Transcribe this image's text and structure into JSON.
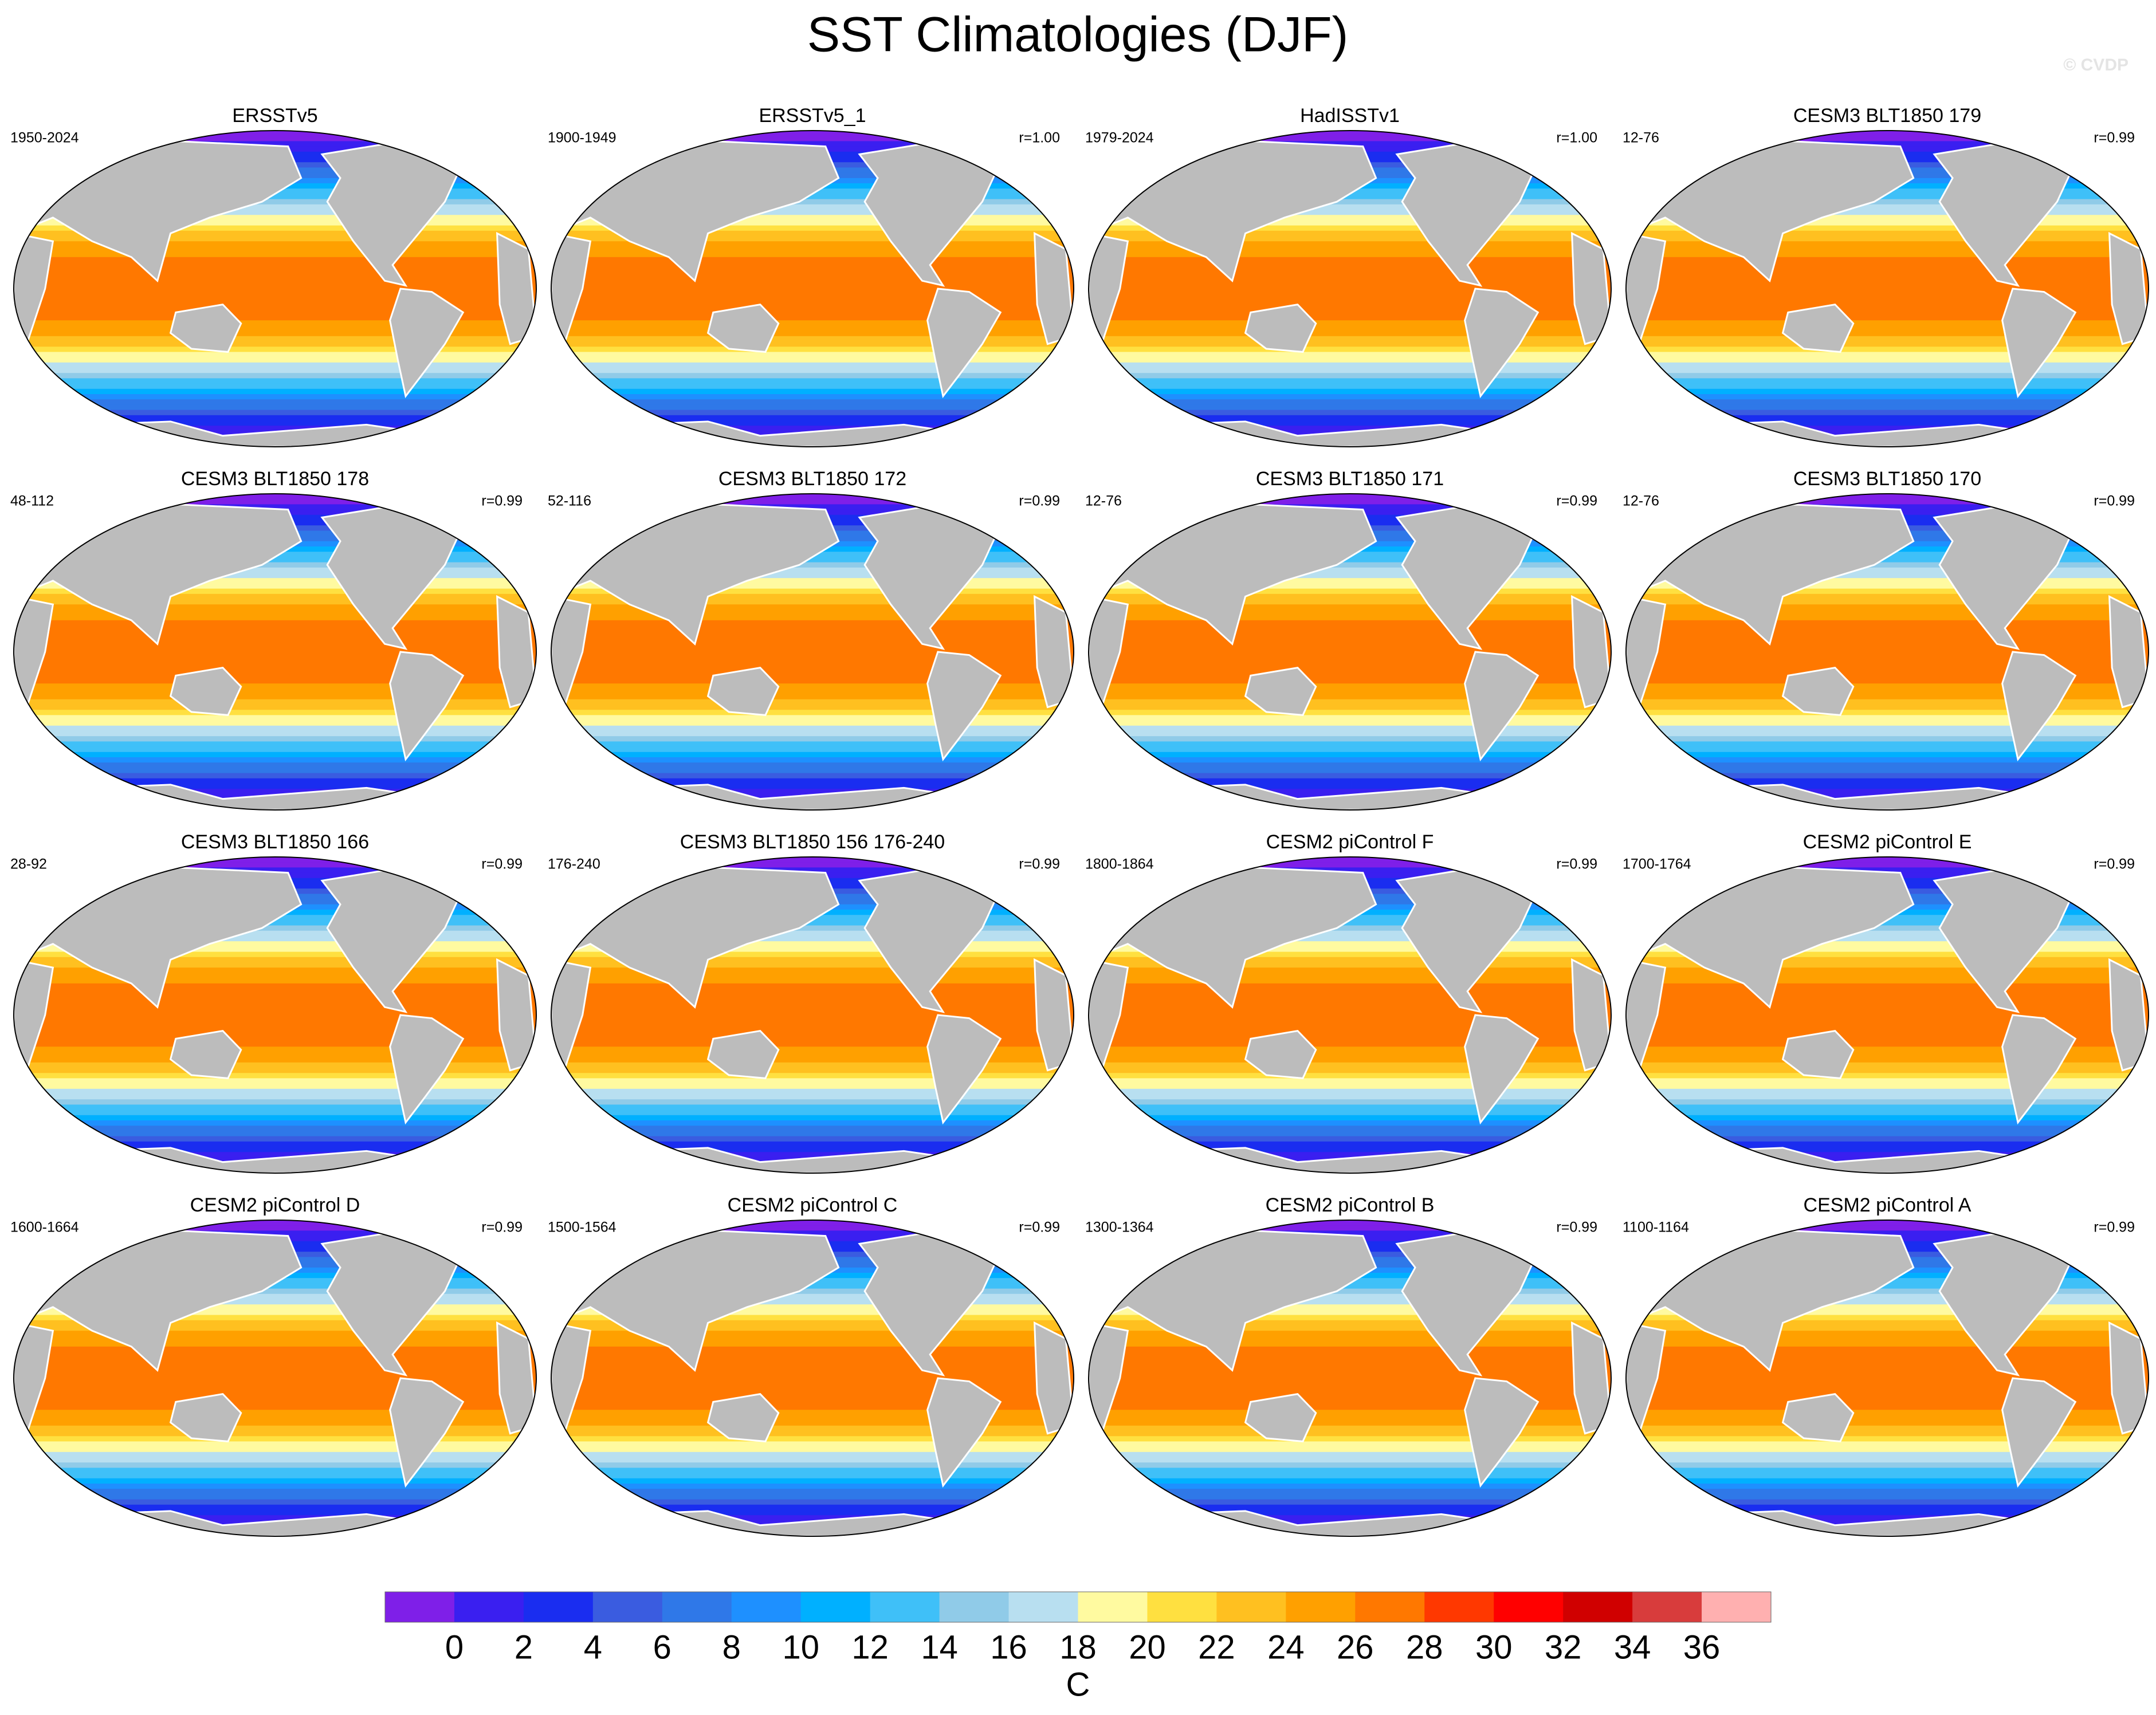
{
  "title": "SST Climatologies (DJF)",
  "watermark": "© CVDP",
  "panels": [
    {
      "title": "ERSSTv5",
      "period": "1950-2024"
    },
    {
      "title": "ERSSTv5_1",
      "period": "1900-1949",
      "r": "r=1.00"
    },
    {
      "title": "HadISSTv1",
      "period": "1979-2024",
      "r": "r=1.00"
    },
    {
      "title": "CESM3 BLT1850 179",
      "period": "12-76",
      "r": "r=0.99"
    },
    {
      "title": "CESM3 BLT1850 178",
      "period": "48-112",
      "r": "r=0.99"
    },
    {
      "title": "CESM3 BLT1850 172",
      "period": "52-116",
      "r": "r=0.99"
    },
    {
      "title": "CESM3 BLT1850 171",
      "period": "12-76",
      "r": "r=0.99"
    },
    {
      "title": "CESM3 BLT1850 170",
      "period": "12-76",
      "r": "r=0.99"
    },
    {
      "title": "CESM3 BLT1850 166",
      "period": "28-92",
      "r": "r=0.99"
    },
    {
      "title": "CESM3 BLT1850 156 176-240",
      "period": "176-240",
      "r": "r=0.99"
    },
    {
      "title": "CESM2 piControl F",
      "period": "1800-1864",
      "r": "r=0.99"
    },
    {
      "title": "CESM2 piControl E",
      "period": "1700-1764",
      "r": "r=0.99"
    },
    {
      "title": "CESM2 piControl D",
      "period": "1600-1664",
      "r": "r=0.99"
    },
    {
      "title": "CESM2 piControl C",
      "period": "1500-1564",
      "r": "r=0.99"
    },
    {
      "title": "CESM2 piControl B",
      "period": "1300-1364",
      "r": "r=0.99"
    },
    {
      "title": "CESM2 piControl A",
      "period": "1100-1164",
      "r": "r=0.99"
    }
  ],
  "colorbar": {
    "colors": [
      "#7f1fe8",
      "#3a1ff0",
      "#1a2df0",
      "#3a5ce0",
      "#2f78e8",
      "#1e90ff",
      "#00b0ff",
      "#3fc0f8",
      "#90cbe8",
      "#b8dff0",
      "#fffaa0",
      "#ffe040",
      "#ffc020",
      "#ffa000",
      "#ff7800",
      "#ff3800",
      "#ff0000",
      "#d00000",
      "#d83c3c",
      "#ffb0b0"
    ],
    "ticks": [
      0,
      2,
      4,
      6,
      8,
      10,
      12,
      14,
      16,
      18,
      20,
      22,
      24,
      26,
      28,
      30,
      32,
      34,
      36
    ],
    "label": "C"
  }
}
